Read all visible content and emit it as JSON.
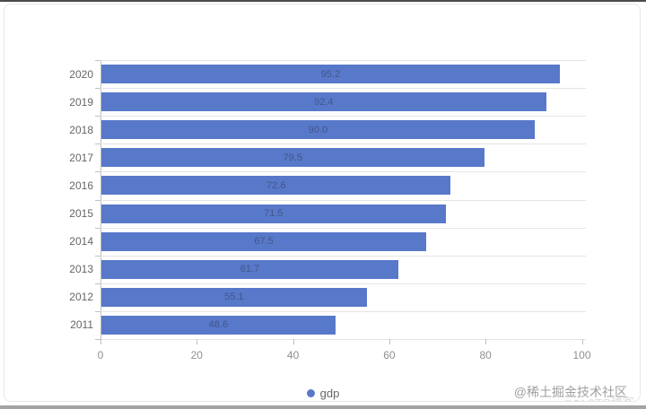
{
  "chart_data": {
    "type": "bar",
    "orientation": "horizontal",
    "categories": [
      "2020",
      "2019",
      "2018",
      "2017",
      "2016",
      "2015",
      "2014",
      "2013",
      "2012",
      "2011"
    ],
    "series": [
      {
        "name": "gdp",
        "values": [
          95.2,
          92.4,
          90.0,
          79.5,
          72.6,
          71.5,
          67.5,
          61.7,
          55.1,
          48.6
        ]
      }
    ],
    "title": "",
    "xlabel": "",
    "ylabel": "",
    "xlim": [
      0,
      100
    ],
    "xticks": [
      0,
      20,
      40,
      60,
      80,
      100
    ],
    "grid": "horizontal-category-splitlines",
    "legend_position": "bottom-center",
    "bar_color": "#5878c9",
    "value_labels": "inside-center"
  },
  "legend": {
    "label": "gdp"
  },
  "watermark": {
    "main": "@稀土掘金技术社区",
    "faint": "@51CTO博客"
  }
}
